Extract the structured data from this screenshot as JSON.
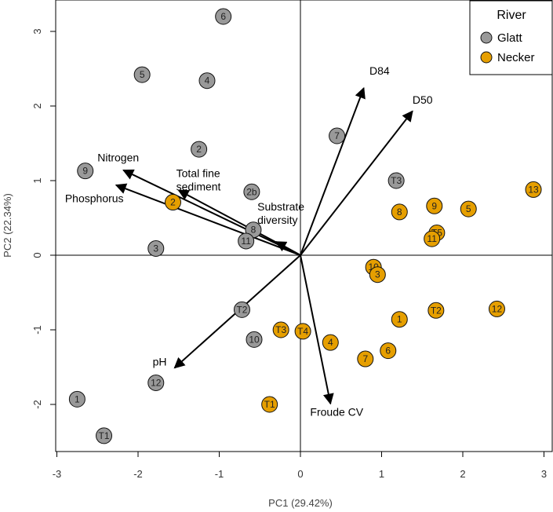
{
  "chart_data": {
    "type": "scatter",
    "xlabel": "PC1 (29.42%)",
    "ylabel": "PC2 (22.34%)",
    "xlim": [
      -3,
      3
    ],
    "ylim": [
      -2.5,
      3
    ],
    "xticks": [
      "-3",
      "-2",
      "-1",
      "0",
      "1",
      "2",
      "3"
    ],
    "yticks": [
      "-2",
      "-1",
      "0",
      "1",
      "2",
      "3"
    ],
    "legend": {
      "title": "River",
      "placement": "top-right",
      "entries": [
        {
          "name": "Glatt",
          "color": "#999999"
        },
        {
          "name": "Necker",
          "color": "#E69F00"
        }
      ]
    },
    "series": [
      {
        "name": "Glatt",
        "color": "#999999",
        "points": [
          {
            "label": "6",
            "x": -0.95,
            "y": 3.2
          },
          {
            "label": "5",
            "x": -1.95,
            "y": 2.42
          },
          {
            "label": "4",
            "x": -1.15,
            "y": 2.34
          },
          {
            "label": "2",
            "x": -1.25,
            "y": 1.42
          },
          {
            "label": "9",
            "x": -2.65,
            "y": 1.13
          },
          {
            "label": "2b",
            "x": -0.6,
            "y": 0.85
          },
          {
            "label": "8",
            "x": -0.58,
            "y": 0.34
          },
          {
            "label": "11",
            "x": -0.67,
            "y": 0.19
          },
          {
            "label": "3",
            "x": -1.78,
            "y": 0.09
          },
          {
            "label": "7",
            "x": 0.45,
            "y": 1.6
          },
          {
            "label": "T3",
            "x": 1.18,
            "y": 1.0
          },
          {
            "label": "T2",
            "x": -0.72,
            "y": -0.73
          },
          {
            "label": "10",
            "x": -0.57,
            "y": -1.13
          },
          {
            "label": "12",
            "x": -1.78,
            "y": -1.71
          },
          {
            "label": "1",
            "x": -2.75,
            "y": -1.93
          },
          {
            "label": "T1",
            "x": -2.42,
            "y": -2.42
          }
        ]
      },
      {
        "name": "Necker",
        "color": "#E69F00",
        "points": [
          {
            "label": "2",
            "x": -1.57,
            "y": 0.71
          },
          {
            "label": "8",
            "x": 1.22,
            "y": 0.58
          },
          {
            "label": "9",
            "x": 1.65,
            "y": 0.66
          },
          {
            "label": "5",
            "x": 2.07,
            "y": 0.62
          },
          {
            "label": "13",
            "x": 2.87,
            "y": 0.88
          },
          {
            "label": "T5",
            "x": 1.68,
            "y": 0.3
          },
          {
            "label": "11",
            "x": 1.62,
            "y": 0.22
          },
          {
            "label": "10",
            "x": 0.9,
            "y": -0.16
          },
          {
            "label": "3",
            "x": 0.95,
            "y": -0.26
          },
          {
            "label": "1",
            "x": 1.22,
            "y": -0.86
          },
          {
            "label": "T2",
            "x": 1.67,
            "y": -0.74
          },
          {
            "label": "12",
            "x": 2.42,
            "y": -0.72
          },
          {
            "label": "T3",
            "x": -0.24,
            "y": -1.0
          },
          {
            "label": "T4",
            "x": 0.03,
            "y": -1.02
          },
          {
            "label": "4",
            "x": 0.37,
            "y": -1.17
          },
          {
            "label": "6",
            "x": 1.08,
            "y": -1.28
          },
          {
            "label": "7",
            "x": 0.8,
            "y": -1.39
          },
          {
            "label": "T1",
            "x": -0.38,
            "y": -2.0
          }
        ]
      }
    ],
    "vectors": [
      {
        "name": "D84",
        "x": 0.78,
        "y": 2.24,
        "label_x": 0.85,
        "label_y": 2.42
      },
      {
        "name": "D50",
        "x": 1.38,
        "y": 1.93,
        "label_x": 1.38,
        "label_y": 2.03
      },
      {
        "name": "Nitrogen",
        "x": -2.18,
        "y": 1.14,
        "label_x": -2.5,
        "label_y": 1.26
      },
      {
        "name": "Phosphorus",
        "x": -2.27,
        "y": 0.94,
        "label_x": -2.9,
        "label_y": 0.71
      },
      {
        "name": "Total fine sediment",
        "x": -1.5,
        "y": 0.87,
        "label_x": -1.53,
        "label_y": 1.05
      },
      {
        "name": "Substrate diversity",
        "x": -0.3,
        "y": 0.18,
        "label_x": -0.53,
        "label_y": 0.6
      },
      {
        "name": "pH",
        "x": -1.55,
        "y": -1.51,
        "label_x": -1.82,
        "label_y": -1.48
      },
      {
        "name": "Froude CV",
        "x": 0.37,
        "y": -1.99,
        "label_x": 0.12,
        "label_y": -2.15
      }
    ]
  }
}
